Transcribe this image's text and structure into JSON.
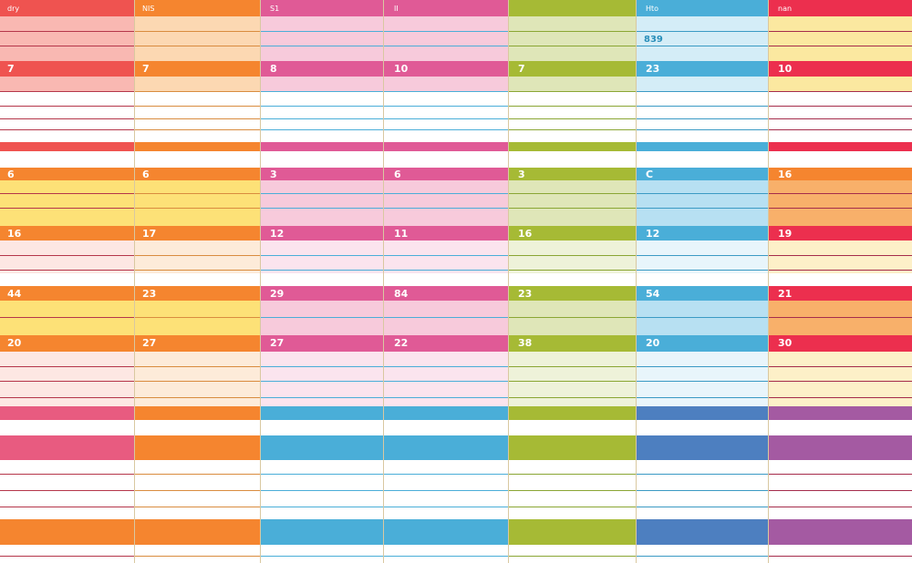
{
  "header_labels": [
    "dry",
    "NIS",
    "S1",
    "II",
    "",
    "Hto",
    "nan"
  ],
  "row_numbers": {
    "row1": [
      "7",
      "7",
      "8",
      "10",
      "7",
      "23",
      "10"
    ],
    "row2": [
      "6",
      "6",
      "3",
      "6",
      "3",
      "C",
      "16"
    ],
    "row3": [
      "16",
      "17",
      "12",
      "11",
      "16",
      "12",
      "19"
    ],
    "row4": [
      "44",
      "23",
      "29",
      "84",
      "23",
      "54",
      "21"
    ],
    "row5": [
      "20",
      "27",
      "27",
      "22",
      "38",
      "20",
      "30"
    ]
  },
  "annotations": [
    {
      "text": "839",
      "color": "#2a8fba"
    }
  ],
  "palette": {
    "red": "#ef5350",
    "orange": "#f5852f",
    "pink": "#e05a96",
    "lime": "#a6ba35",
    "sky": "#4aaed8",
    "crimson": "#ec2f4e",
    "yellow": "#fbdf4f",
    "blue": "#4d7fc0",
    "purple": "#a45aa2"
  }
}
